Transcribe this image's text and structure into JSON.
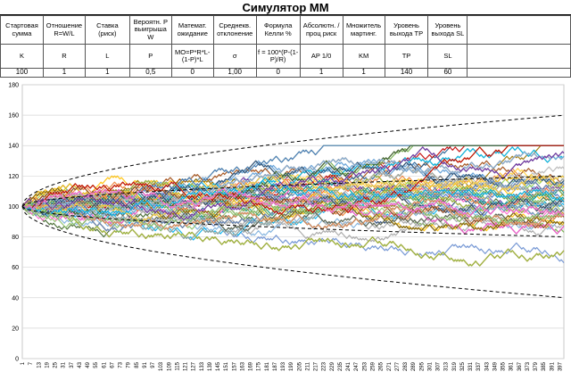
{
  "title": "Симулятор ММ",
  "parameters": [
    {
      "label": "Стартовая сумма",
      "symbol": "K",
      "value": "100"
    },
    {
      "label": "Отношение R=W/L",
      "symbol": "R",
      "value": "1"
    },
    {
      "label": "Ставка (риск)",
      "symbol": "L",
      "value": "1"
    },
    {
      "label": "Вероятн. P выигрыша W",
      "symbol": "P",
      "value": "0,5"
    },
    {
      "label": "Математ. ожидание",
      "symbol": "MO=P*R*L-(1-P)*L",
      "value": "0"
    },
    {
      "label": "Среднекв. отклонение",
      "symbol": "σ",
      "value": "1,00"
    },
    {
      "label": "Формула Келли %",
      "symbol": "f = 100*(P-(1-P)/R)",
      "value": "0"
    },
    {
      "label": "Абсолютн. /проц риск",
      "symbol": "AP 1/0",
      "value": "1"
    },
    {
      "label": "Множитель мартинг.",
      "symbol": "KM",
      "value": "1"
    },
    {
      "label": "Уровень выхода TP",
      "symbol": "TP",
      "value": "140"
    },
    {
      "label": "Уровень выхода SL",
      "symbol": "SL",
      "value": "60"
    }
  ],
  "chart_data": {
    "type": "line",
    "title": "",
    "xlabel": "",
    "ylabel": "",
    "x_range": [
      1,
      400
    ],
    "x_tick_start": 1,
    "x_tick_step": 6,
    "ylim": [
      0,
      180
    ],
    "y_ticks": [
      0,
      20,
      40,
      60,
      80,
      100,
      120,
      140,
      160,
      180
    ],
    "grid": "horizontal",
    "legend": "none",
    "start_value": 100,
    "step_size": 1,
    "take_profit": 140,
    "stop_loss": 60,
    "num_walks": 95,
    "envelopes": [
      {
        "name": "±3σ",
        "k": 3,
        "color": "#000000",
        "dashed": true
      },
      {
        "name": "±1σ",
        "k": 1,
        "color": "#000000",
        "dashed": true
      }
    ],
    "series_colors": [
      "#4472c4",
      "#ed7d31",
      "#a5a5a5",
      "#ffc000",
      "#5b9bd5",
      "#70ad47",
      "#264478",
      "#9e480e",
      "#636363",
      "#997300",
      "#255e91",
      "#43682b",
      "#698ed0",
      "#f1975a",
      "#b7b7b7",
      "#ffcd33",
      "#7cafdd",
      "#8cc168",
      "#c00000",
      "#7030a0",
      "#00b0f0",
      "#92d050",
      "#ff66cc",
      "#1f9e89"
    ]
  }
}
